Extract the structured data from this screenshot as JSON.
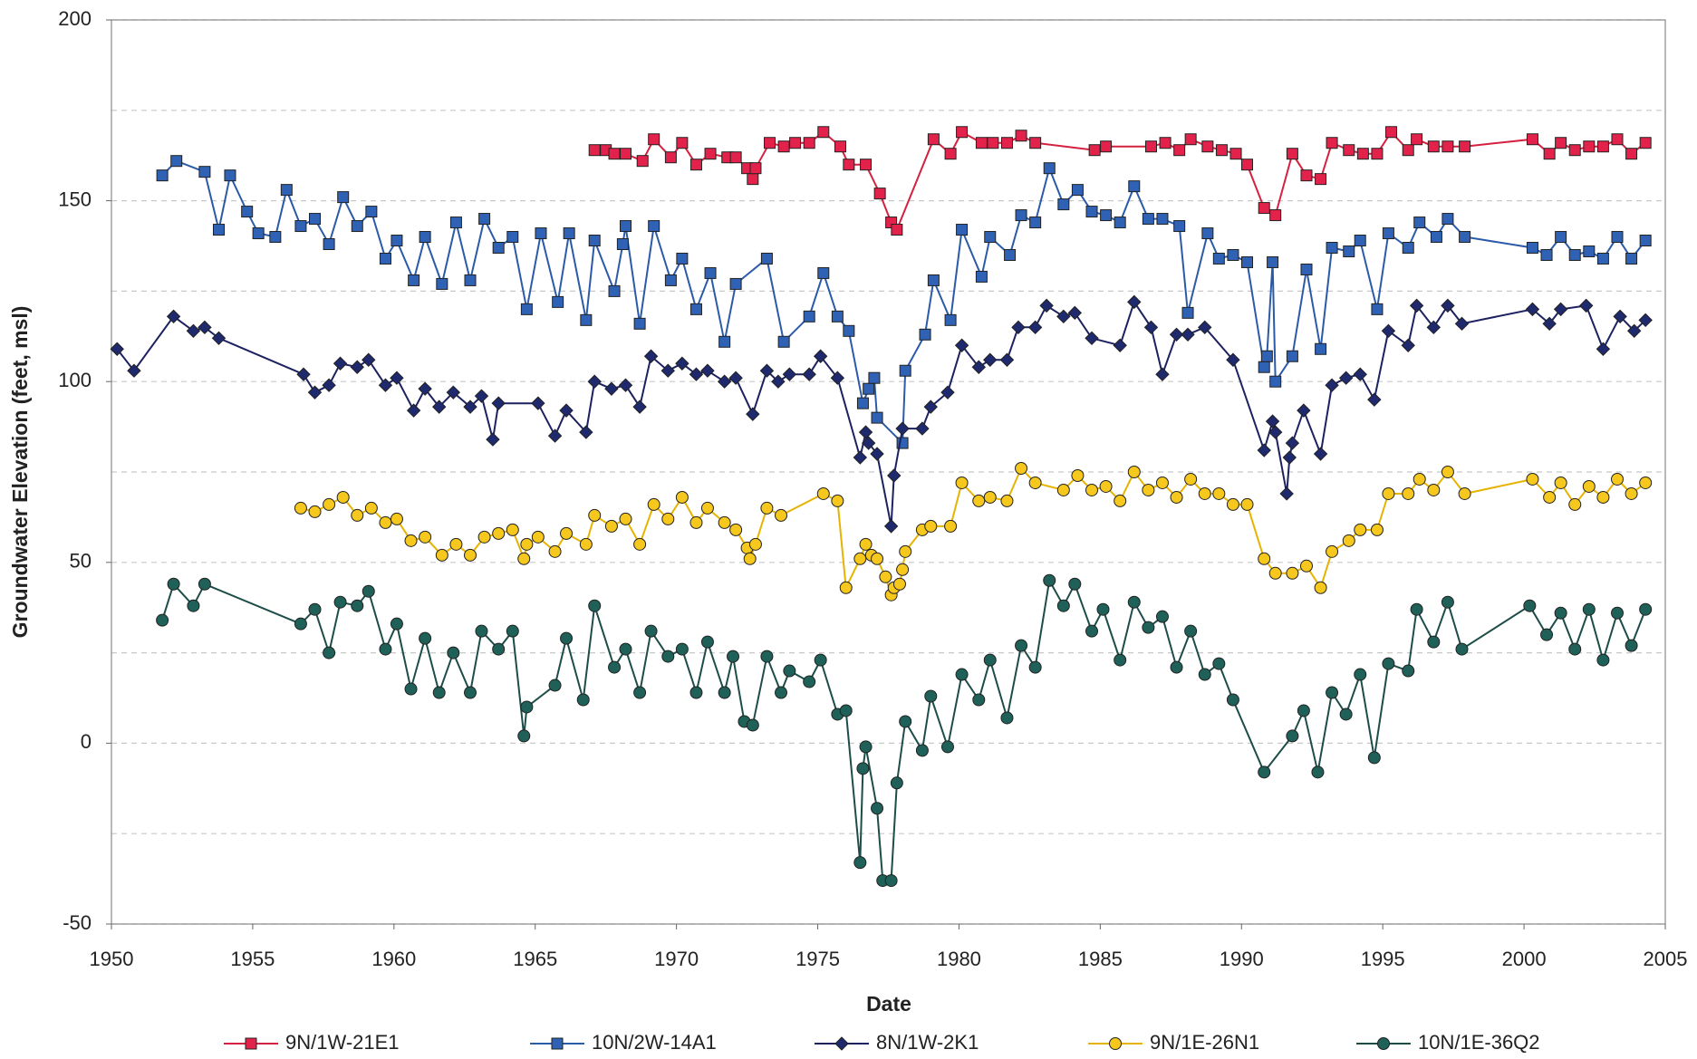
{
  "chart_data": {
    "type": "line",
    "x_label": "Date",
    "y_label": "Groundwater Elevation (feet, msl)",
    "xlim": [
      1950,
      2005
    ],
    "xticks": [
      1950,
      1955,
      1960,
      1965,
      1970,
      1975,
      1980,
      1985,
      1990,
      1995,
      2000,
      2005
    ],
    "ylim": [
      -50,
      200
    ],
    "yticks": [
      -50,
      0,
      50,
      100,
      150,
      200
    ],
    "y_minor_ticks": [
      -25,
      25,
      75,
      125,
      175
    ],
    "grid": true,
    "legend": "bottom",
    "series": [
      {
        "name": "9N/1W-21E1",
        "color": "#d4213f",
        "marker_color": "#e3224c",
        "marker": "square",
        "x": [
          1967.1,
          1967.5,
          1967.8,
          1968.2,
          1968.8,
          1969.2,
          1969.8,
          1970.2,
          1970.7,
          1971.2,
          1971.8,
          1972.1,
          1972.5,
          1972.7,
          1972.8,
          1973.3,
          1973.8,
          1974.2,
          1974.7,
          1975.2,
          1975.8,
          1976.1,
          1976.7,
          1977.2,
          1977.6,
          1977.8,
          1979.1,
          1979.7,
          1980.1,
          1980.8,
          1981.2,
          1981.7,
          1982.2,
          1982.7,
          1984.8,
          1985.2,
          1986.8,
          1987.3,
          1987.8,
          1988.2,
          1988.8,
          1989.3,
          1989.8,
          1990.2,
          1990.8,
          1991.2,
          1991.8,
          1992.3,
          1992.8,
          1993.2,
          1993.8,
          1994.3,
          1994.8,
          1995.3,
          1995.9,
          1996.2,
          1996.8,
          1997.3,
          1997.9,
          2000.3,
          2000.9,
          2001.3,
          2001.8,
          2002.3,
          2002.8,
          2003.3,
          2003.8,
          2004.3
        ],
        "values": [
          164,
          164,
          163,
          163,
          161,
          167,
          162,
          166,
          160,
          163,
          162,
          162,
          159,
          156,
          159,
          166,
          165,
          166,
          166,
          169,
          165,
          160,
          160,
          152,
          144,
          142,
          167,
          163,
          169,
          166,
          166,
          166,
          168,
          166,
          164,
          165,
          165,
          166,
          164,
          167,
          165,
          164,
          163,
          160,
          148,
          146,
          163,
          157,
          156,
          166,
          164,
          163,
          163,
          169,
          164,
          167,
          165,
          165,
          165,
          167,
          163,
          166,
          164,
          165,
          165,
          167,
          163,
          166
        ]
      },
      {
        "name": "10N/2W-14A1",
        "color": "#2b5aa8",
        "marker_color": "#2f62b4",
        "marker": "square",
        "x": [
          1951.8,
          1952.3,
          1953.3,
          1953.8,
          1954.2,
          1954.8,
          1955.2,
          1955.8,
          1956.2,
          1956.7,
          1957.2,
          1957.7,
          1958.2,
          1958.7,
          1959.2,
          1959.7,
          1960.1,
          1960.7,
          1961.1,
          1961.7,
          1962.2,
          1962.7,
          1963.2,
          1963.7,
          1964.2,
          1964.7,
          1965.2,
          1965.8,
          1966.2,
          1966.8,
          1967.1,
          1967.8,
          1968.1,
          1968.2,
          1968.7,
          1969.2,
          1969.8,
          1970.2,
          1970.7,
          1971.2,
          1971.7,
          1972.1,
          1973.2,
          1973.8,
          1974.7,
          1975.2,
          1975.7,
          1976.1,
          1976.6,
          1976.8,
          1977.0,
          1977.1,
          1978.0,
          1978.1,
          1978.8,
          1979.1,
          1979.7,
          1980.1,
          1980.8,
          1981.1,
          1981.8,
          1982.2,
          1982.7,
          1983.2,
          1983.7,
          1984.2,
          1984.7,
          1985.2,
          1985.7,
          1986.2,
          1986.7,
          1987.2,
          1987.8,
          1988.1,
          1988.8,
          1989.2,
          1989.7,
          1990.2,
          1990.8,
          1990.9,
          1991.1,
          1991.2,
          1991.8,
          1992.3,
          1992.8,
          1993.2,
          1993.8,
          1994.2,
          1994.8,
          1995.2,
          1995.9,
          1996.3,
          1996.9,
          1997.3,
          1997.9,
          2000.3,
          2000.8,
          2001.3,
          2001.8,
          2002.3,
          2002.8,
          2003.3,
          2003.8,
          2004.3
        ],
        "values": [
          157,
          161,
          158,
          142,
          157,
          147,
          141,
          140,
          153,
          143,
          145,
          138,
          151,
          143,
          147,
          134,
          139,
          128,
          140,
          127,
          144,
          128,
          145,
          137,
          140,
          120,
          141,
          122,
          141,
          117,
          139,
          125,
          138,
          143,
          116,
          143,
          128,
          134,
          120,
          130,
          111,
          127,
          134,
          111,
          118,
          130,
          118,
          114,
          94,
          98,
          101,
          90,
          83,
          103,
          113,
          128,
          117,
          142,
          129,
          140,
          135,
          146,
          144,
          159,
          149,
          153,
          147,
          146,
          144,
          154,
          145,
          145,
          143,
          119,
          141,
          134,
          135,
          133,
          104,
          107,
          133,
          100,
          107,
          131,
          109,
          137,
          136,
          139,
          120,
          141,
          137,
          144,
          140,
          145,
          140,
          137,
          135,
          140,
          135,
          136,
          134,
          140,
          134,
          139
        ]
      },
      {
        "name": "8N/1W-2K1",
        "color": "#1c2160",
        "marker_color": "#1f2a6e",
        "marker": "diamond",
        "x": [
          1950.2,
          1950.8,
          1952.2,
          1952.9,
          1953.3,
          1953.8,
          1956.8,
          1957.2,
          1957.7,
          1958.1,
          1958.7,
          1959.1,
          1959.7,
          1960.1,
          1960.7,
          1961.1,
          1961.6,
          1962.1,
          1962.7,
          1963.1,
          1963.5,
          1963.7,
          1965.1,
          1965.7,
          1966.1,
          1966.8,
          1967.1,
          1967.7,
          1968.2,
          1968.7,
          1969.1,
          1969.7,
          1970.2,
          1970.7,
          1971.1,
          1971.7,
          1972.1,
          1972.7,
          1973.2,
          1973.6,
          1974.0,
          1974.7,
          1975.1,
          1975.7,
          1976.5,
          1976.7,
          1976.8,
          1977.1,
          1977.6,
          1977.7,
          1978.0,
          1978.7,
          1979.0,
          1979.6,
          1980.1,
          1980.7,
          1981.1,
          1981.7,
          1982.1,
          1982.7,
          1983.1,
          1983.7,
          1984.1,
          1984.7,
          1985.7,
          1986.2,
          1986.8,
          1987.2,
          1987.7,
          1988.1,
          1988.7,
          1989.7,
          1990.8,
          1991.1,
          1991.2,
          1991.6,
          1991.7,
          1991.8,
          1992.2,
          1992.8,
          1993.2,
          1993.7,
          1994.2,
          1994.7,
          1995.2,
          1995.9,
          1996.2,
          1996.8,
          1997.3,
          1997.8,
          2000.3,
          2000.9,
          2001.3,
          2002.2,
          2002.8,
          2003.4,
          2003.9,
          2004.3
        ],
        "values": [
          109,
          103,
          118,
          114,
          115,
          112,
          102,
          97,
          99,
          105,
          104,
          106,
          99,
          101,
          92,
          98,
          93,
          97,
          93,
          96,
          84,
          94,
          94,
          85,
          92,
          86,
          100,
          98,
          99,
          93,
          107,
          103,
          105,
          102,
          103,
          100,
          101,
          91,
          103,
          100,
          102,
          102,
          107,
          101,
          79,
          86,
          83,
          80,
          60,
          74,
          87,
          87,
          93,
          97,
          110,
          104,
          106,
          106,
          115,
          115,
          121,
          118,
          119,
          112,
          110,
          122,
          115,
          102,
          113,
          113,
          115,
          106,
          81,
          89,
          86,
          69,
          79,
          83,
          92,
          80,
          99,
          101,
          102,
          95,
          114,
          110,
          121,
          115,
          121,
          116,
          120,
          116,
          120,
          121,
          109,
          118,
          114,
          117
        ]
      },
      {
        "name": "9N/1E-26N1",
        "color": "#e6b400",
        "marker_color": "#f6c81e",
        "marker": "circle",
        "x": [
          1956.7,
          1957.2,
          1957.7,
          1958.2,
          1958.7,
          1959.2,
          1959.7,
          1960.1,
          1960.6,
          1961.1,
          1961.7,
          1962.2,
          1962.7,
          1963.2,
          1963.7,
          1964.2,
          1964.6,
          1964.7,
          1965.1,
          1965.7,
          1966.1,
          1966.8,
          1967.1,
          1967.7,
          1968.2,
          1968.7,
          1969.2,
          1969.7,
          1970.2,
          1970.7,
          1971.1,
          1971.7,
          1972.1,
          1972.5,
          1972.6,
          1972.8,
          1973.2,
          1973.7,
          1975.2,
          1975.7,
          1976.0,
          1976.5,
          1976.7,
          1976.9,
          1977.1,
          1977.4,
          1977.6,
          1977.7,
          1977.9,
          1978.0,
          1978.1,
          1978.7,
          1979.0,
          1979.7,
          1980.1,
          1980.7,
          1981.1,
          1981.7,
          1982.2,
          1982.7,
          1983.7,
          1984.2,
          1984.7,
          1985.2,
          1985.7,
          1986.2,
          1986.7,
          1987.2,
          1987.7,
          1988.2,
          1988.7,
          1989.2,
          1989.7,
          1990.2,
          1990.8,
          1991.2,
          1991.8,
          1992.3,
          1992.8,
          1993.2,
          1993.8,
          1994.2,
          1994.8,
          1995.2,
          1995.9,
          1996.3,
          1996.8,
          1997.3,
          1997.9,
          2000.3,
          2000.9,
          2001.3,
          2001.8,
          2002.3,
          2002.8,
          2003.3,
          2003.8,
          2004.3
        ],
        "values": [
          65,
          64,
          66,
          68,
          63,
          65,
          61,
          62,
          56,
          57,
          52,
          55,
          52,
          57,
          58,
          59,
          51,
          55,
          57,
          53,
          58,
          55,
          63,
          60,
          62,
          55,
          66,
          62,
          68,
          61,
          65,
          61,
          59,
          54,
          51,
          55,
          65,
          63,
          69,
          67,
          43,
          51,
          55,
          52,
          51,
          46,
          41,
          43,
          44,
          48,
          53,
          59,
          60,
          60,
          72,
          67,
          68,
          67,
          76,
          72,
          70,
          74,
          70,
          71,
          67,
          75,
          70,
          72,
          68,
          73,
          69,
          69,
          66,
          66,
          51,
          47,
          47,
          49,
          43,
          53,
          56,
          59,
          59,
          69,
          69,
          73,
          70,
          75,
          69,
          73,
          68,
          72,
          66,
          71,
          68,
          73,
          69,
          72
        ]
      },
      {
        "name": "10N/1E-36Q2",
        "color": "#1d4d48",
        "marker_color": "#1f6159",
        "marker": "circle",
        "x": [
          1951.8,
          1952.2,
          1952.9,
          1953.3,
          1956.7,
          1957.2,
          1957.7,
          1958.1,
          1958.7,
          1959.1,
          1959.7,
          1960.1,
          1960.6,
          1961.1,
          1961.6,
          1962.1,
          1962.7,
          1963.1,
          1963.7,
          1964.2,
          1964.6,
          1964.7,
          1965.7,
          1966.1,
          1966.7,
          1967.1,
          1967.8,
          1968.2,
          1968.7,
          1969.1,
          1969.7,
          1970.2,
          1970.7,
          1971.1,
          1971.7,
          1972.0,
          1972.4,
          1972.7,
          1973.2,
          1973.7,
          1974.0,
          1974.7,
          1975.1,
          1975.7,
          1976.0,
          1976.5,
          1976.6,
          1976.7,
          1977.1,
          1977.3,
          1977.6,
          1977.8,
          1978.1,
          1978.7,
          1979.0,
          1979.6,
          1980.1,
          1980.7,
          1981.1,
          1981.7,
          1982.2,
          1982.7,
          1983.2,
          1983.7,
          1984.1,
          1984.7,
          1985.1,
          1985.7,
          1986.2,
          1986.7,
          1987.2,
          1987.7,
          1988.2,
          1988.7,
          1989.2,
          1989.7,
          1990.8,
          1991.8,
          1992.2,
          1992.7,
          1993.2,
          1993.7,
          1994.2,
          1994.7,
          1995.2,
          1995.9,
          1996.2,
          1996.8,
          1997.3,
          1997.8,
          2000.2,
          2000.8,
          2001.3,
          2001.8,
          2002.3,
          2002.8,
          2003.3,
          2003.8,
          2004.3
        ],
        "values": [
          34,
          44,
          38,
          44,
          33,
          37,
          25,
          39,
          38,
          42,
          26,
          33,
          15,
          29,
          14,
          25,
          14,
          31,
          26,
          31,
          2,
          10,
          16,
          29,
          12,
          38,
          21,
          26,
          14,
          31,
          24,
          26,
          14,
          28,
          14,
          24,
          6,
          5,
          24,
          14,
          20,
          17,
          23,
          8,
          9,
          -33,
          -7,
          -1,
          -18,
          -38,
          -38,
          -11,
          6,
          -2,
          13,
          -1,
          19,
          12,
          23,
          7,
          27,
          21,
          45,
          38,
          44,
          31,
          37,
          23,
          39,
          32,
          35,
          21,
          31,
          19,
          22,
          12,
          -8,
          2,
          9,
          -8,
          14,
          8,
          19,
          -4,
          22,
          20,
          37,
          28,
          39,
          26,
          38,
          30,
          36,
          26,
          37,
          23,
          36,
          27,
          37
        ]
      }
    ]
  }
}
